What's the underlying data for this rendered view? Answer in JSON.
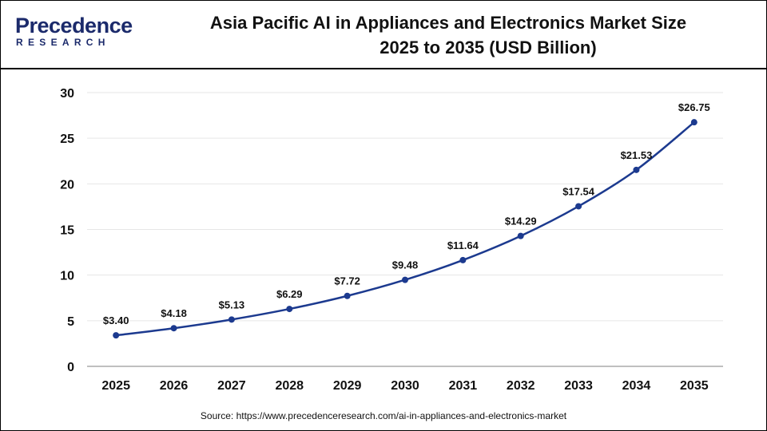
{
  "header": {
    "title_line1": "Asia Pacific AI in Appliances and Electronics Market Size",
    "title_line2": "2025 to 2035 (USD Billion)"
  },
  "logo": {
    "word": "Precedence",
    "sub": "RESEARCH",
    "colors": {
      "primary": "#1b2a6b",
      "accent": "#2aa8e0"
    }
  },
  "footer": {
    "source": "Source: https://www.precedenceresearch.com/ai-in-appliances-and-electronics-market"
  },
  "chart_data": {
    "type": "line",
    "title": "Asia Pacific AI in Appliances and Electronics Market Size 2025 to 2035 (USD Billion)",
    "xlabel": "",
    "ylabel": "",
    "x": [
      "2025",
      "2026",
      "2027",
      "2028",
      "2029",
      "2030",
      "2031",
      "2032",
      "2033",
      "2034",
      "2035"
    ],
    "series": [
      {
        "values": [
          3.4,
          4.18,
          5.13,
          6.29,
          7.72,
          9.48,
          11.64,
          14.29,
          17.54,
          21.53,
          26.75
        ]
      }
    ],
    "data_labels": [
      "$3.40",
      "$4.18",
      "$5.13",
      "$6.29",
      "$7.72",
      "$9.48",
      "$11.64",
      "$14.29",
      "$17.54",
      "$21.53",
      "$26.75"
    ],
    "ylim": [
      0,
      30
    ],
    "yticks": [
      0,
      5,
      10,
      15,
      20,
      25,
      30
    ],
    "grid": true,
    "line_color": "#1c3a8f",
    "grid_color": "#e6e6e6",
    "axis_color": "#7f7f7f"
  }
}
